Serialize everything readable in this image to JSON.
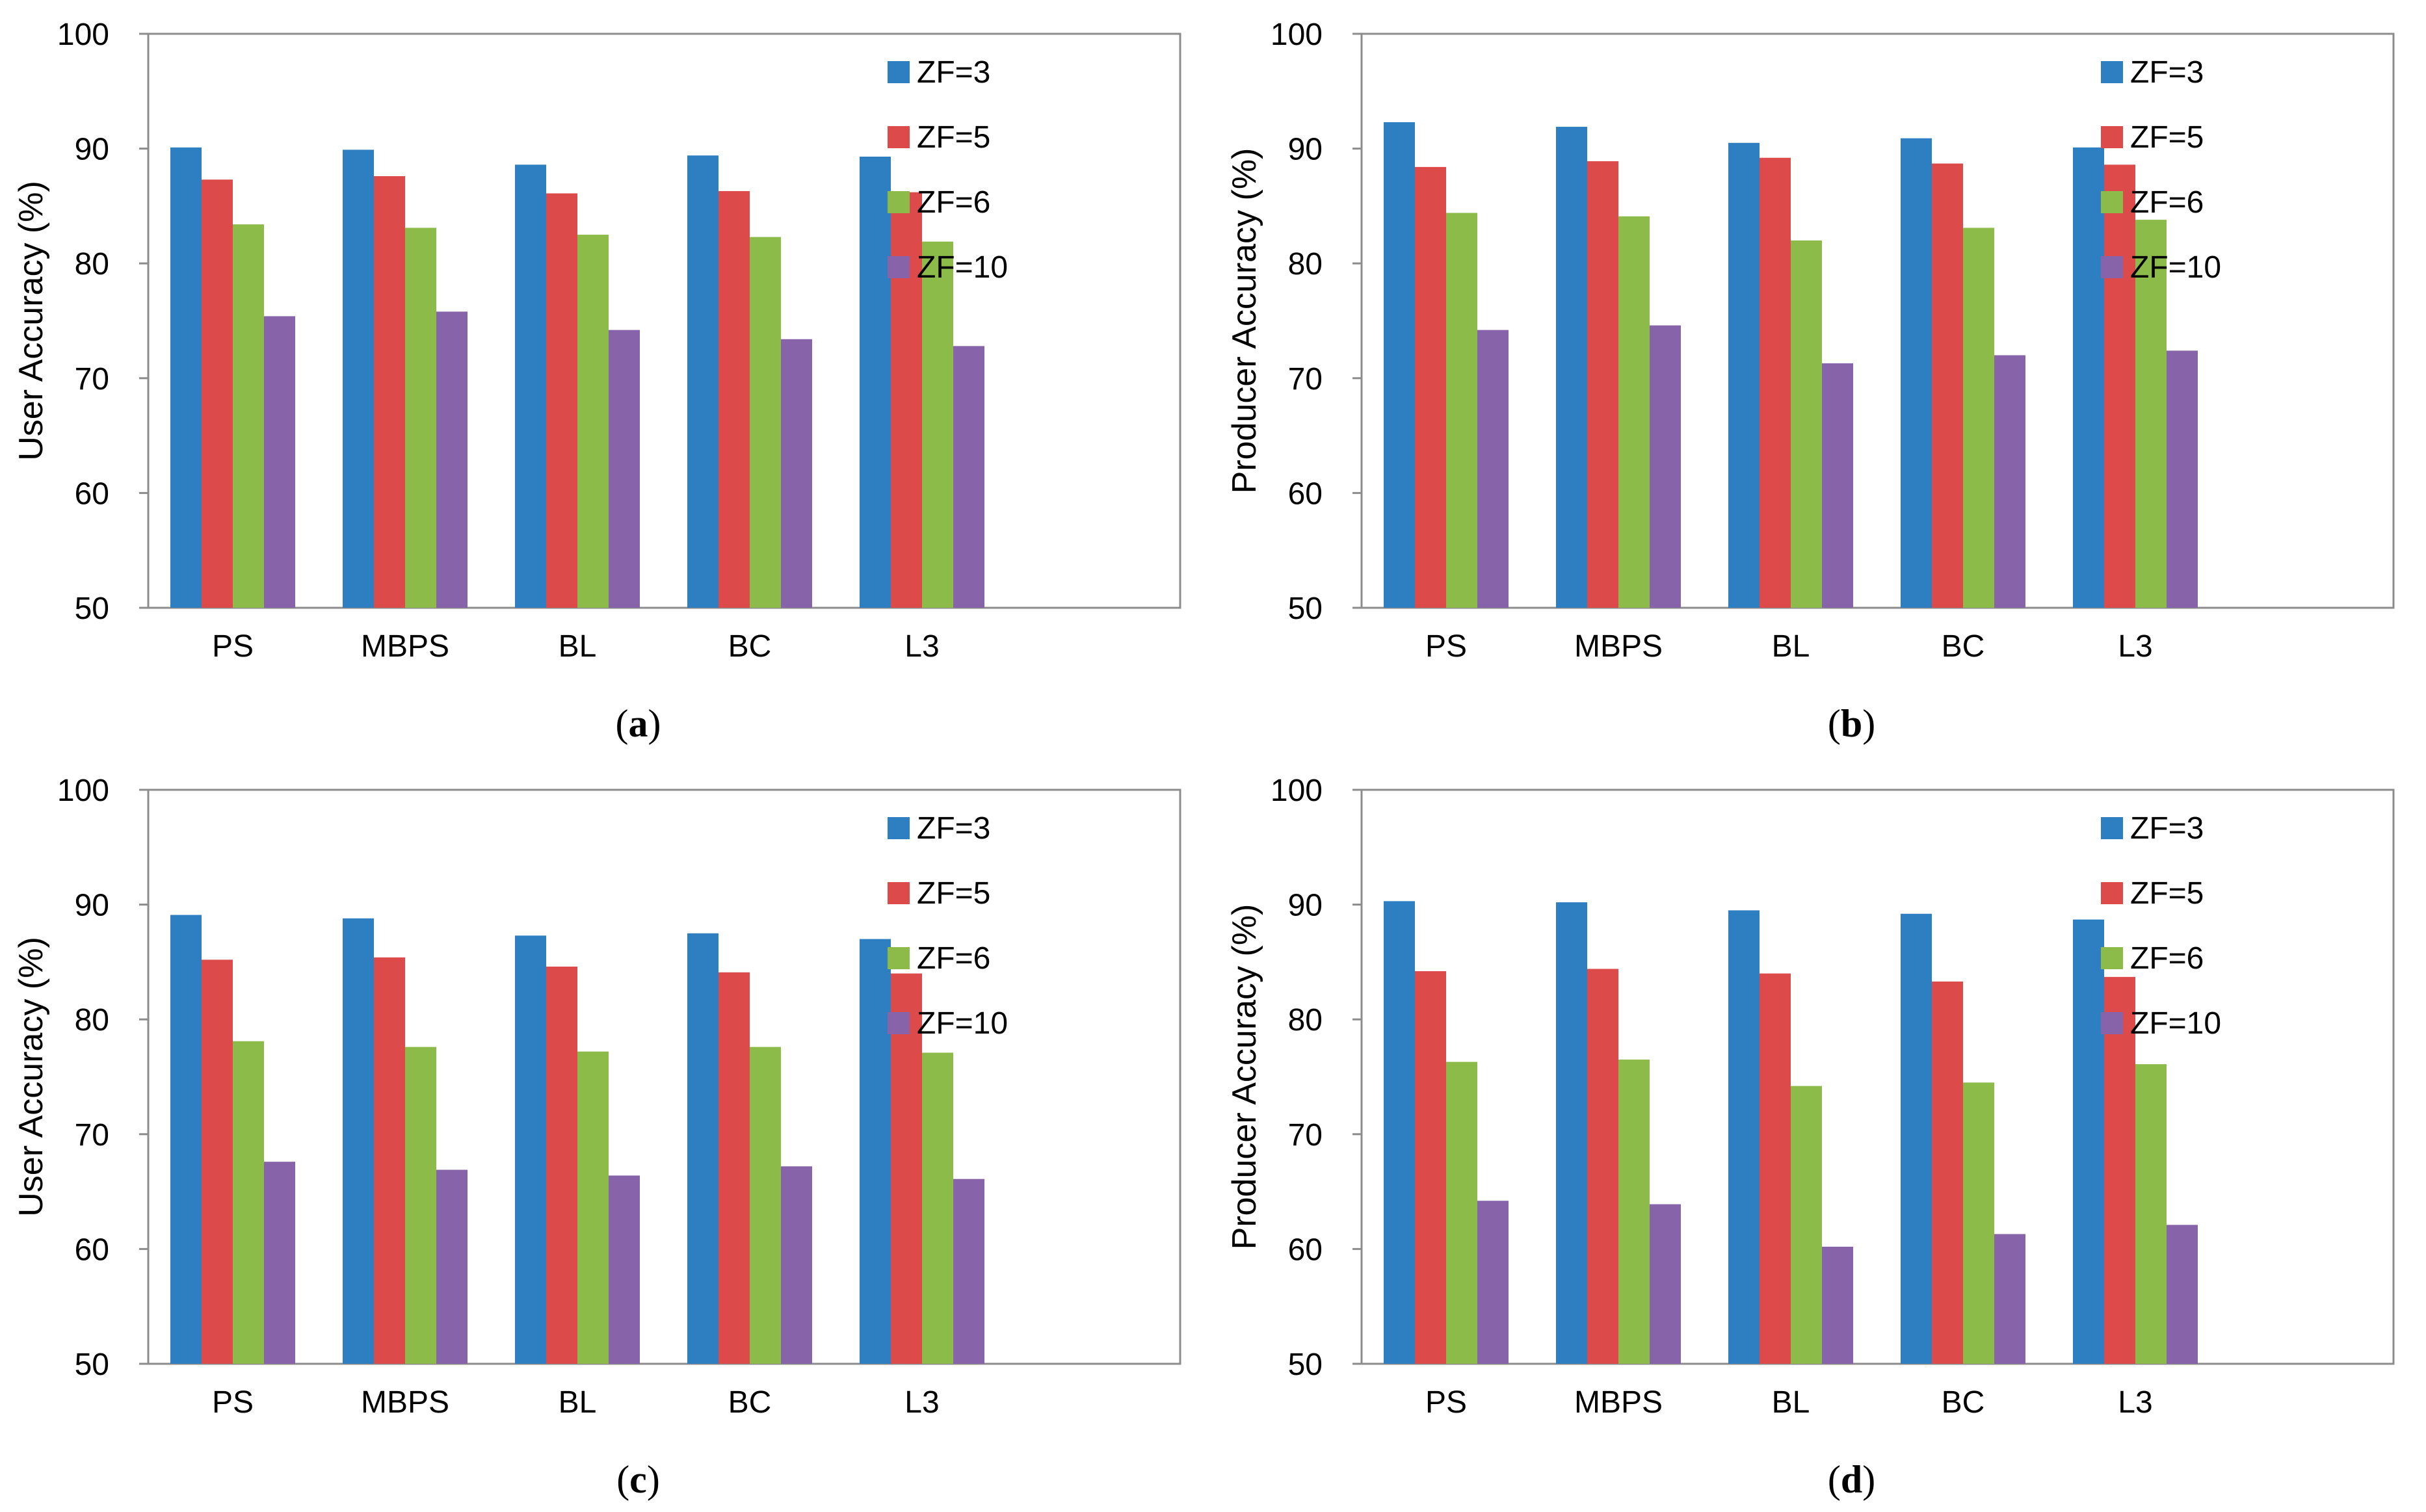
{
  "colors": {
    "series": [
      "#2e7ec2",
      "#dc4a4a",
      "#8dbb4a",
      "#8764a9"
    ],
    "axis": "#8c8c8c",
    "background": "#ffffff"
  },
  "chart_data": [
    {
      "type": "bar",
      "caption_open": "(",
      "caption_letter": "a",
      "caption_close": ")",
      "ylabel": "User Accuracy (%)",
      "ylim": [
        50,
        100
      ],
      "yticks": [
        50,
        60,
        70,
        80,
        90,
        100
      ],
      "categories": [
        "PS",
        "MBPS",
        "BL",
        "BC",
        "L3"
      ],
      "legend_position": "top-right",
      "series": [
        {
          "name": "ZF=3",
          "values": [
            90.1,
            89.9,
            88.6,
            89.4,
            89.3
          ]
        },
        {
          "name": "ZF=5",
          "values": [
            87.3,
            87.6,
            86.1,
            86.3,
            86.2
          ]
        },
        {
          "name": "ZF=6",
          "values": [
            83.4,
            83.1,
            82.5,
            82.3,
            81.9
          ]
        },
        {
          "name": "ZF=10",
          "values": [
            75.4,
            75.8,
            74.2,
            73.4,
            72.8
          ]
        }
      ]
    },
    {
      "type": "bar",
      "caption_open": "(",
      "caption_letter": "b",
      "caption_close": ")",
      "ylabel": "Producer Accuracy (%)",
      "ylim": [
        50,
        100
      ],
      "yticks": [
        50,
        60,
        70,
        80,
        90,
        100
      ],
      "categories": [
        "PS",
        "MBPS",
        "BL",
        "BC",
        "L3"
      ],
      "legend_position": "top-right",
      "series": [
        {
          "name": "ZF=3",
          "values": [
            92.3,
            91.9,
            90.5,
            90.9,
            90.1
          ]
        },
        {
          "name": "ZF=5",
          "values": [
            88.4,
            88.9,
            89.2,
            88.7,
            88.6
          ]
        },
        {
          "name": "ZF=6",
          "values": [
            84.4,
            84.1,
            82.0,
            83.1,
            83.8
          ]
        },
        {
          "name": "ZF=10",
          "values": [
            74.2,
            74.6,
            71.3,
            72.0,
            72.4
          ]
        }
      ]
    },
    {
      "type": "bar",
      "caption_open": "(",
      "caption_letter": "c",
      "caption_close": ")",
      "ylabel": "User Accuracy (%)",
      "ylim": [
        50,
        100
      ],
      "yticks": [
        50,
        60,
        70,
        80,
        90,
        100
      ],
      "categories": [
        "PS",
        "MBPS",
        "BL",
        "BC",
        "L3"
      ],
      "legend_position": "top-right",
      "series": [
        {
          "name": "ZF=3",
          "values": [
            89.1,
            88.8,
            87.3,
            87.5,
            87.0
          ]
        },
        {
          "name": "ZF=5",
          "values": [
            85.2,
            85.4,
            84.6,
            84.1,
            84.0
          ]
        },
        {
          "name": "ZF=6",
          "values": [
            78.1,
            77.6,
            77.2,
            77.6,
            77.1
          ]
        },
        {
          "name": "ZF=10",
          "values": [
            67.6,
            66.9,
            66.4,
            67.2,
            66.1
          ]
        }
      ]
    },
    {
      "type": "bar",
      "caption_open": "(",
      "caption_letter": "d",
      "caption_close": ")",
      "ylabel": "Producer Accuracy (%)",
      "ylim": [
        50,
        100
      ],
      "yticks": [
        50,
        60,
        70,
        80,
        90,
        100
      ],
      "categories": [
        "PS",
        "MBPS",
        "BL",
        "BC",
        "L3"
      ],
      "legend_position": "top-right",
      "series": [
        {
          "name": "ZF=3",
          "values": [
            90.3,
            90.2,
            89.5,
            89.2,
            88.7
          ]
        },
        {
          "name": "ZF=5",
          "values": [
            84.2,
            84.4,
            84.0,
            83.3,
            83.7
          ]
        },
        {
          "name": "ZF=6",
          "values": [
            76.3,
            76.5,
            74.2,
            74.5,
            76.1
          ]
        },
        {
          "name": "ZF=10",
          "values": [
            64.2,
            63.9,
            60.2,
            61.3,
            62.1
          ]
        }
      ]
    }
  ]
}
